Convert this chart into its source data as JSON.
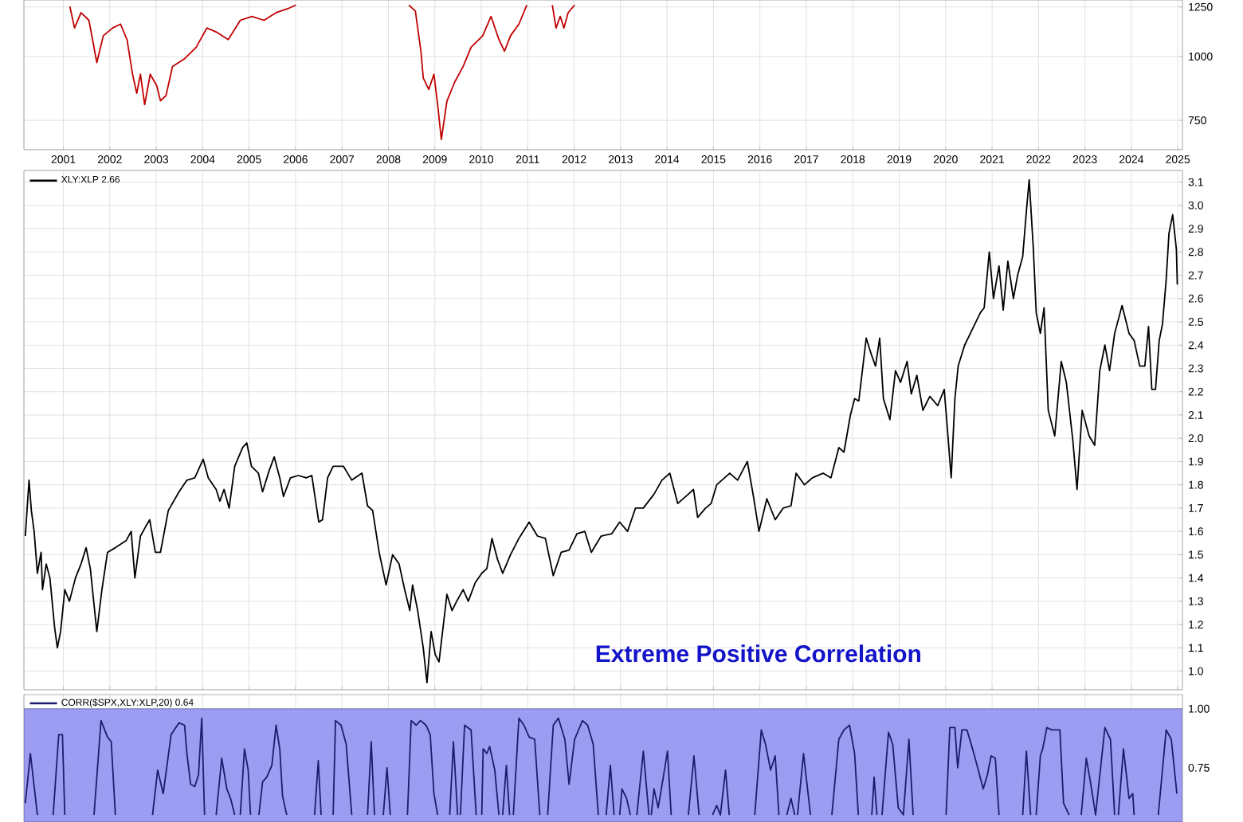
{
  "chart_data": [
    {
      "type": "line",
      "log": "y",
      "grid": true,
      "xlim": [
        2000.15,
        2025.1
      ],
      "ylim": [
        657,
        1290
      ],
      "xticks": [
        2001,
        2002,
        2003,
        2004,
        2005,
        2006,
        2007,
        2008,
        2009,
        2010,
        2011,
        2012,
        2013,
        2014,
        2015,
        2016,
        2017,
        2018,
        2019,
        2020,
        2021,
        2022,
        2023,
        2024,
        2025
      ],
      "yticks": [
        750,
        1000,
        1250
      ],
      "x": [
        2001.14,
        2001.24,
        2001.38,
        2001.55,
        2001.72,
        2001.86,
        2002.06,
        2002.23,
        2002.37,
        2002.49,
        2002.58,
        2002.66,
        2002.75,
        2002.87,
        2003.01,
        2003.09,
        2003.21,
        2003.35,
        2003.61,
        2003.86,
        2004.09,
        2004.29,
        2004.55,
        2004.81,
        2005.06,
        2005.32,
        2005.58,
        2005.83,
        2006.01,
        2006.2,
        2008.44,
        2008.58,
        2008.7,
        2008.75,
        2008.87,
        2008.98,
        2009.06,
        2009.14,
        2009.26,
        2009.43,
        2009.61,
        2009.78,
        2010.03,
        2010.21,
        2010.38,
        2010.5,
        2010.63,
        2010.81,
        2010.98,
        2011.2,
        2011.53,
        2011.61,
        2011.7,
        2011.78,
        2011.87,
        2012.01
      ],
      "series": [
        {
          "color": "#c00000",
          "values": [
            1252,
            1137,
            1218,
            1177,
            973,
            1098,
            1137,
            1157,
            1079,
            923,
            847,
            923,
            805,
            923,
            877,
            819,
            838,
            956,
            990,
            1042,
            1137,
            1117,
            1079,
            1177,
            1198,
            1177,
            1218,
            1240,
            1261,
            null,
            1261,
            1227,
            1024,
            908,
            862,
            923,
            805,
            688,
            818,
            892,
            956,
            1042,
            1098,
            1198,
            1079,
            1024,
            1098,
            1157,
            1261,
            null,
            1261,
            1137,
            1198,
            1137,
            1218,
            1261
          ]
        }
      ]
    },
    {
      "type": "line",
      "grid": true,
      "legend": "top left",
      "tick_labels": "y",
      "xlim": [
        2000.15,
        2025.1
      ],
      "ylim": [
        0.92,
        3.15
      ],
      "xticks": [
        2001,
        2002,
        2003,
        2004,
        2005,
        2006,
        2007,
        2008,
        2009,
        2010,
        2011,
        2012,
        2013,
        2014,
        2015,
        2016,
        2017,
        2018,
        2019,
        2020,
        2021,
        2022,
        2023,
        2024,
        2025
      ],
      "yticks": [
        {
          "value": 1.0,
          "label": "1.0"
        },
        1.1,
        1.2,
        1.3,
        1.4,
        1.5,
        1.6,
        1.7,
        1.8,
        1.9,
        {
          "value": 2.0,
          "label": "2.0"
        },
        2.1,
        2.2,
        2.3,
        2.4,
        2.5,
        2.6,
        2.7,
        2.8,
        2.9,
        {
          "value": 3.0,
          "label": "3.0"
        },
        3.1
      ],
      "annotations": [
        "Extreme Positive Correlation"
      ],
      "x": [
        2000.18,
        2000.26,
        2000.31,
        2000.37,
        2000.44,
        2000.52,
        2000.55,
        2000.63,
        2000.71,
        2000.81,
        2000.87,
        2000.94,
        2001.03,
        2001.13,
        2001.26,
        2001.38,
        2001.49,
        2001.58,
        2001.72,
        2001.83,
        2001.95,
        2002.12,
        2002.35,
        2002.46,
        2002.54,
        2002.66,
        2002.77,
        2002.86,
        2002.98,
        2003.09,
        2003.26,
        2003.49,
        2003.66,
        2003.83,
        2004.01,
        2004.12,
        2004.29,
        2004.37,
        2004.46,
        2004.57,
        2004.69,
        2004.86,
        2004.95,
        2005.05,
        2005.2,
        2005.29,
        2005.43,
        2005.54,
        2005.66,
        2005.74,
        2005.89,
        2006.06,
        2006.23,
        2006.35,
        2006.5,
        2006.58,
        2006.69,
        2006.81,
        2007.03,
        2007.21,
        2007.43,
        2007.55,
        2007.66,
        2007.8,
        2007.95,
        2008.09,
        2008.23,
        2008.35,
        2008.46,
        2008.52,
        2008.63,
        2008.75,
        2008.83,
        2008.92,
        2009.01,
        2009.09,
        2009.26,
        2009.37,
        2009.47,
        2009.61,
        2009.72,
        2009.87,
        2010.01,
        2010.12,
        2010.23,
        2010.35,
        2010.46,
        2010.63,
        2010.81,
        2011.03,
        2011.21,
        2011.38,
        2011.55,
        2011.72,
        2011.89,
        2012.06,
        2012.23,
        2012.37,
        2012.58,
        2012.81,
        2012.98,
        2013.15,
        2013.32,
        2013.49,
        2013.72,
        2013.89,
        2014.06,
        2014.23,
        2014.46,
        2014.57,
        2014.66,
        2014.83,
        2014.95,
        2015.07,
        2015.24,
        2015.35,
        2015.52,
        2015.73,
        2015.87,
        2015.98,
        2016.15,
        2016.33,
        2016.5,
        2016.67,
        2016.78,
        2016.96,
        2017.13,
        2017.36,
        2017.53,
        2017.7,
        2017.81,
        2017.95,
        2018.04,
        2018.13,
        2018.29,
        2018.4,
        2018.49,
        2018.58,
        2018.66,
        2018.8,
        2018.92,
        2019.03,
        2019.17,
        2019.26,
        2019.38,
        2019.51,
        2019.66,
        2019.83,
        2019.97,
        2020.03,
        2020.12,
        2020.2,
        2020.27,
        2020.41,
        2020.58,
        2020.75,
        2020.83,
        2020.94,
        2021.03,
        2021.15,
        2021.24,
        2021.34,
        2021.46,
        2021.55,
        2021.66,
        2021.75,
        2021.8,
        2021.89,
        2021.95,
        2022.04,
        2022.12,
        2022.21,
        2022.35,
        2022.49,
        2022.6,
        2022.74,
        2022.83,
        2022.94,
        2023.09,
        2023.21,
        2023.32,
        2023.43,
        2023.53,
        2023.64,
        2023.8,
        2023.95,
        2024.06,
        2024.18,
        2024.29,
        2024.37,
        2024.44,
        2024.52,
        2024.6,
        2024.67,
        2024.75,
        2024.81,
        2024.89,
        2024.97,
        2024.99
      ],
      "series": [
        {
          "name": "XLY:XLP 2.66",
          "color": "#000000",
          "values": [
            1.58,
            1.82,
            1.69,
            1.6,
            1.42,
            1.51,
            1.35,
            1.46,
            1.4,
            1.19,
            1.1,
            1.17,
            1.35,
            1.3,
            1.4,
            1.46,
            1.53,
            1.44,
            1.17,
            1.35,
            1.51,
            1.53,
            1.56,
            1.6,
            1.4,
            1.58,
            1.62,
            1.65,
            1.51,
            1.51,
            1.69,
            1.77,
            1.82,
            1.83,
            1.91,
            1.83,
            1.78,
            1.73,
            1.78,
            1.7,
            1.88,
            1.96,
            1.98,
            1.88,
            1.85,
            1.77,
            1.86,
            1.92,
            1.83,
            1.75,
            1.83,
            1.84,
            1.83,
            1.84,
            1.64,
            1.65,
            1.83,
            1.88,
            1.88,
            1.82,
            1.85,
            1.71,
            1.69,
            1.51,
            1.37,
            1.5,
            1.46,
            1.35,
            1.26,
            1.37,
            1.26,
            1.1,
            0.95,
            1.17,
            1.07,
            1.04,
            1.33,
            1.26,
            1.3,
            1.35,
            1.3,
            1.38,
            1.42,
            1.44,
            1.57,
            1.48,
            1.42,
            1.5,
            1.57,
            1.64,
            1.58,
            1.57,
            1.41,
            1.51,
            1.52,
            1.59,
            1.6,
            1.51,
            1.58,
            1.59,
            1.64,
            1.6,
            1.7,
            1.7,
            1.76,
            1.82,
            1.85,
            1.72,
            1.76,
            1.78,
            1.66,
            1.7,
            1.72,
            1.8,
            1.83,
            1.85,
            1.82,
            1.9,
            1.74,
            1.6,
            1.74,
            1.65,
            1.7,
            1.71,
            1.85,
            1.8,
            1.83,
            1.85,
            1.83,
            1.96,
            1.94,
            2.1,
            2.17,
            2.16,
            2.43,
            2.36,
            2.31,
            2.43,
            2.17,
            2.08,
            2.29,
            2.24,
            2.33,
            2.19,
            2.27,
            2.12,
            2.18,
            2.14,
            2.21,
            2.06,
            1.83,
            2.17,
            2.31,
            2.4,
            2.47,
            2.54,
            2.56,
            2.8,
            2.6,
            2.74,
            2.55,
            2.76,
            2.6,
            2.7,
            2.78,
            3.0,
            3.11,
            2.81,
            2.54,
            2.45,
            2.56,
            2.12,
            2.01,
            2.33,
            2.24,
            1.99,
            1.78,
            2.12,
            2.01,
            1.97,
            2.29,
            2.4,
            2.29,
            2.45,
            2.57,
            2.45,
            2.42,
            2.31,
            2.31,
            2.48,
            2.21,
            2.21,
            2.42,
            2.49,
            2.68,
            2.88,
            2.96,
            2.81,
            2.66
          ]
        }
      ]
    },
    {
      "type": "line",
      "grid": true,
      "legend": "top left",
      "tick_labels": "y",
      "xlim": [
        2000.15,
        2025.1
      ],
      "ylim": [
        0.52,
        1.06
      ],
      "xticks": [
        2001,
        2002,
        2003,
        2004,
        2005,
        2006,
        2007,
        2008,
        2009,
        2010,
        2011,
        2012,
        2013,
        2014,
        2015,
        2016,
        2017,
        2018,
        2019,
        2020,
        2021,
        2022,
        2023,
        2024,
        2025
      ],
      "yticks": [
        {
          "value": 0.75,
          "label": "0.75"
        },
        {
          "value": 1.0,
          "label": "1.00"
        }
      ],
      "bands": [
        {
          "axis": "y",
          "from": 0.52,
          "to": 1.0,
          "color": "#9c9cf2"
        }
      ],
      "x": [
        2000.18,
        2000.29,
        2000.44,
        2000.6,
        2000.78,
        2000.9,
        2000.98,
        2001.03,
        2001.4,
        2001.66,
        2001.81,
        2001.95,
        2002.03,
        2002.12,
        2002.5,
        2002.92,
        2003.03,
        2003.15,
        2003.32,
        2003.49,
        2003.61,
        2003.66,
        2003.74,
        2003.83,
        2003.91,
        2003.98,
        2004.04,
        2004.15,
        2004.29,
        2004.41,
        2004.52,
        2004.6,
        2004.69,
        2004.75,
        2004.81,
        2004.9,
        2004.98,
        2005.03,
        2005.1,
        2005.21,
        2005.29,
        2005.38,
        2005.49,
        2005.58,
        2005.66,
        2005.72,
        2005.81,
        2006.1,
        2006.41,
        2006.49,
        2006.55,
        2006.7,
        2006.81,
        2006.86,
        2006.98,
        2007.09,
        2007.21,
        2007.4,
        2007.55,
        2007.63,
        2007.7,
        2007.8,
        2007.89,
        2007.97,
        2008.04,
        2008.2,
        2008.41,
        2008.49,
        2008.6,
        2008.69,
        2008.81,
        2008.9,
        2008.98,
        2009.06,
        2009.2,
        2009.32,
        2009.4,
        2009.49,
        2009.52,
        2009.55,
        2009.64,
        2009.78,
        2009.89,
        2009.95,
        2010.01,
        2010.04,
        2010.12,
        2010.18,
        2010.29,
        2010.38,
        2010.42,
        2010.46,
        2010.54,
        2010.61,
        2010.65,
        2010.69,
        2010.81,
        2010.92,
        2011.03,
        2011.15,
        2011.26,
        2011.35,
        2011.43,
        2011.55,
        2011.66,
        2011.8,
        2011.89,
        2012.01,
        2012.18,
        2012.29,
        2012.41,
        2012.52,
        2012.6,
        2012.69,
        2012.78,
        2012.86,
        2012.92,
        2012.98,
        2013.03,
        2013.13,
        2013.21,
        2013.28,
        2013.35,
        2013.49,
        2013.61,
        2013.63,
        2013.66,
        2013.72,
        2013.81,
        2013.92,
        2014.01,
        2014.09,
        2014.3,
        2014.46,
        2014.58,
        2014.69,
        2014.8,
        2014.98,
        2015.07,
        2015.15,
        2015.26,
        2015.34,
        2015.6,
        2015.89,
        2016.03,
        2016.12,
        2016.23,
        2016.33,
        2016.41,
        2016.5,
        2016.58,
        2016.67,
        2016.75,
        2016.78,
        2016.81,
        2016.94,
        2017.09,
        2017.3,
        2017.55,
        2017.7,
        2017.81,
        2017.93,
        2018.04,
        2018.12,
        2018.3,
        2018.41,
        2018.46,
        2018.52,
        2018.58,
        2018.63,
        2018.77,
        2018.86,
        2018.98,
        2019.09,
        2019.21,
        2019.3,
        2019.7,
        2020.01,
        2020.09,
        2020.2,
        2020.26,
        2020.35,
        2020.46,
        2020.58,
        2020.69,
        2020.81,
        2020.9,
        2020.98,
        2021.07,
        2021.15,
        2021.4,
        2021.66,
        2021.74,
        2021.83,
        2021.9,
        2021.95,
        2022.04,
        2022.09,
        2022.18,
        2022.29,
        2022.46,
        2022.54,
        2022.66,
        2022.8,
        2022.92,
        2023.03,
        2023.11,
        2023.23,
        2023.43,
        2023.55,
        2023.64,
        2023.68,
        2023.72,
        2023.83,
        2023.95,
        2024.03,
        2024.06,
        2024.3,
        2024.58,
        2024.75,
        2024.86,
        2024.98
      ],
      "series": [
        {
          "name": "CORR($SPX,XLY:XLP,20) 0.64",
          "color": "#1c1c70",
          "values": [
            0.6,
            0.81,
            0.55,
            null,
            0.55,
            0.89,
            0.89,
            0.55,
            null,
            0.55,
            0.95,
            0.88,
            0.86,
            0.55,
            null,
            0.55,
            0.74,
            0.64,
            0.89,
            0.94,
            0.93,
            0.81,
            0.68,
            0.67,
            0.72,
            0.96,
            0.55,
            null,
            0.55,
            0.79,
            0.66,
            0.62,
            0.55,
            null,
            0.55,
            0.83,
            0.74,
            0.55,
            null,
            0.55,
            0.69,
            0.71,
            0.76,
            0.93,
            0.83,
            0.63,
            0.55,
            null,
            0.55,
            0.78,
            0.55,
            null,
            0.55,
            0.95,
            0.93,
            0.85,
            0.55,
            null,
            0.55,
            0.86,
            0.55,
            null,
            0.55,
            0.75,
            0.55,
            null,
            0.55,
            0.95,
            0.93,
            0.95,
            0.93,
            0.89,
            0.64,
            0.55,
            null,
            0.55,
            0.86,
            0.55,
            null,
            0.55,
            0.93,
            0.91,
            0.55,
            null,
            0.55,
            0.83,
            0.81,
            0.84,
            0.74,
            0.55,
            null,
            0.55,
            0.76,
            0.55,
            null,
            0.55,
            0.96,
            0.93,
            0.88,
            0.87,
            0.55,
            null,
            0.55,
            0.93,
            0.96,
            0.87,
            0.68,
            0.87,
            0.95,
            0.93,
            0.85,
            0.55,
            null,
            0.55,
            0.76,
            0.55,
            null,
            0.55,
            0.66,
            0.62,
            0.55,
            null,
            0.55,
            0.82,
            0.55,
            null,
            0.55,
            0.66,
            0.58,
            0.71,
            0.82,
            0.55,
            null,
            0.55,
            0.8,
            0.55,
            null,
            0.55,
            0.59,
            0.55,
            0.74,
            0.55,
            null,
            0.55,
            0.91,
            0.85,
            0.74,
            0.8,
            0.55,
            null,
            0.55,
            0.62,
            0.55,
            null,
            0.55,
            0.81,
            0.55,
            null,
            0.55,
            0.87,
            0.91,
            0.93,
            0.81,
            0.55,
            null,
            0.55,
            0.71,
            0.55,
            null,
            0.55,
            0.9,
            0.85,
            0.58,
            0.55,
            0.87,
            0.55,
            null,
            0.55,
            0.92,
            0.92,
            0.75,
            0.91,
            0.91,
            0.83,
            0.75,
            0.66,
            0.72,
            0.8,
            0.79,
            0.55,
            null,
            0.55,
            0.82,
            0.55,
            null,
            0.55,
            0.8,
            0.83,
            0.92,
            0.91,
            0.91,
            0.6,
            0.55,
            null,
            0.55,
            0.79,
            0.7,
            0.55,
            0.92,
            0.87,
            0.55,
            null,
            0.55,
            0.83,
            0.62,
            0.64,
            0.55,
            null,
            0.55,
            0.91,
            0.87,
            0.64
          ]
        }
      ]
    }
  ]
}
